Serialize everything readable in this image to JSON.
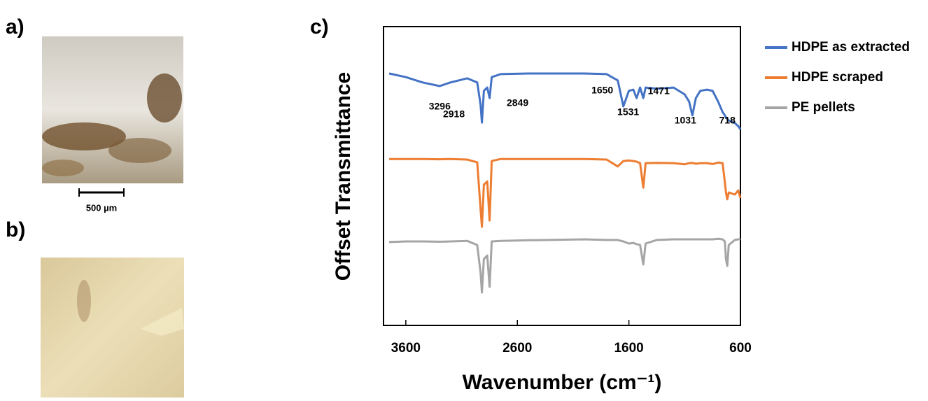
{
  "panels": [
    "a)",
    "b)",
    "c)"
  ],
  "scale_bar": "500 µm",
  "chart_data": {
    "type": "line",
    "x_label": "Wavenumber (cm⁻¹)",
    "y_label": "Offset Transmittance",
    "x": [
      3750,
      3600,
      3450,
      3296,
      3200,
      3050,
      2960,
      2930,
      2918,
      2900,
      2870,
      2849,
      2830,
      2750,
      2500,
      2000,
      1800,
      1700,
      1650,
      1600,
      1560,
      1531,
      1500,
      1471,
      1450,
      1350,
      1200,
      1100,
      1060,
      1031,
      1000,
      960,
      900,
      850,
      800,
      760,
      740,
      730,
      718,
      705,
      650,
      620,
      600
    ],
    "series": [
      {
        "name": "HDPE as extracted",
        "color": "#4472c4",
        "values": [
          84.3,
          83.1,
          81.3,
          80.1,
          81.3,
          82.7,
          81.3,
          73.8,
          67.9,
          78.5,
          79.6,
          76.1,
          83.1,
          84.1,
          84.3,
          84.3,
          84.1,
          82.0,
          73.3,
          78.5,
          78.9,
          76.1,
          79.6,
          76.1,
          79.6,
          79.2,
          79.6,
          77.3,
          74.9,
          70.3,
          76.1,
          78.5,
          78.9,
          78.5,
          74.9,
          71.4,
          70.3,
          69.6,
          69.1,
          68.6,
          67.7,
          66.7,
          65.6
        ]
      },
      {
        "name": "HDPE scraped",
        "color": "#ed7d31",
        "values": [
          55.7,
          55.7,
          55.7,
          55.6,
          55.7,
          55.5,
          54.6,
          38.9,
          33.0,
          47.1,
          48.2,
          35.1,
          55.0,
          55.7,
          55.7,
          55.7,
          55.5,
          53.2,
          55.0,
          55.2,
          55.0,
          54.8,
          54.3,
          46.1,
          54.3,
          54.4,
          54.3,
          53.9,
          54.3,
          54.4,
          54.1,
          54.3,
          54.3,
          54.0,
          54.5,
          54.3,
          48.0,
          44.5,
          42.2,
          44.5,
          43.8,
          45.2,
          42.6
        ]
      },
      {
        "name": "PE pellets",
        "color": "#a5a5a5",
        "values": [
          27.9,
          28.1,
          28.1,
          28.0,
          28.1,
          28.3,
          26.9,
          17.6,
          11.0,
          22.2,
          23.4,
          12.9,
          28.1,
          28.3,
          28.5,
          28.8,
          28.6,
          28.6,
          28.1,
          27.4,
          27.6,
          27.2,
          26.9,
          20.4,
          27.4,
          28.6,
          28.8,
          28.8,
          28.8,
          28.8,
          28.8,
          28.8,
          28.8,
          28.8,
          29.0,
          28.8,
          28.1,
          22.2,
          19.9,
          26.9,
          28.6,
          28.8,
          28.8
        ]
      }
    ],
    "peaks": [
      3296,
      2918,
      2849,
      1650,
      1531,
      1471,
      1031,
      718
    ],
    "xlim": [
      3800,
      600
    ],
    "ylim": [
      0,
      100
    ],
    "xticks": [
      3600,
      2600,
      1600,
      600
    ],
    "legend": "right"
  }
}
